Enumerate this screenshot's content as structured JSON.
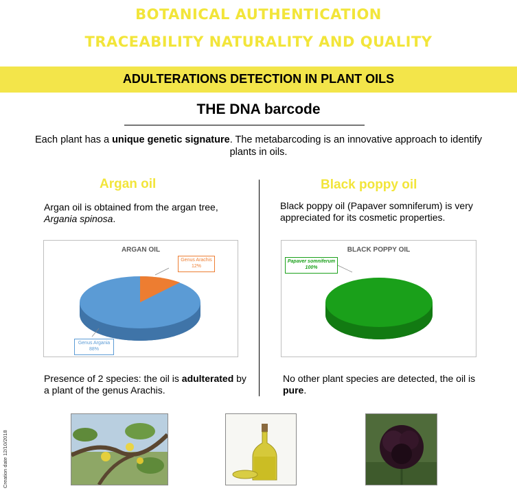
{
  "header": {
    "line1": "BOTANICAL AUTHENTICATION",
    "line2": "TRACEABILITY   NATURALITY AND QUALITY",
    "band": "ADULTERATIONS  DETECTION IN PLANT OILS"
  },
  "section": {
    "title": "THE DNA barcode",
    "intro_a": "Each plant has a ",
    "intro_bold": "unique genetic signature",
    "intro_b": ". The metabarcoding is an innovative approach to identify plants in oils."
  },
  "argan": {
    "heading": "Argan oil",
    "desc_a": "Argan oil is obtained from the argan tree, ",
    "desc_italic": "Argania spinosa",
    "desc_b": ".",
    "result_a": "Presence of 2 species: the oil is ",
    "result_bold": "adulterated",
    "result_b": " by a plant of the genus Arachis."
  },
  "poppy": {
    "heading": "Black poppy oil",
    "desc": "Black poppy oil (Papaver somniferum) is very appreciated for its cosmetic properties.",
    "result_a": "No other plant species are detected, the oil is ",
    "result_bold": "pure",
    "result_b": "."
  },
  "chart_data": [
    {
      "type": "pie",
      "title": "ARGAN OIL",
      "categories": [
        "Genus Arachis",
        "Genus Argania"
      ],
      "values": [
        12,
        88
      ],
      "labels": [
        "12%",
        "88%"
      ],
      "colors": [
        "#ed7d31",
        "#5b9bd5"
      ]
    },
    {
      "type": "pie",
      "title": "BLACK POPPY OIL",
      "categories": [
        "Papaver somniferum"
      ],
      "values": [
        100
      ],
      "labels": [
        "100%"
      ],
      "colors": [
        "#1aa01a"
      ]
    }
  ],
  "side_note": "Creation date 12/10/2018",
  "photos": {
    "argan_tree": "argan-tree-photo",
    "oil_bottle": "oil-bottle-photo",
    "poppy_flower": "black-poppy-photo"
  }
}
